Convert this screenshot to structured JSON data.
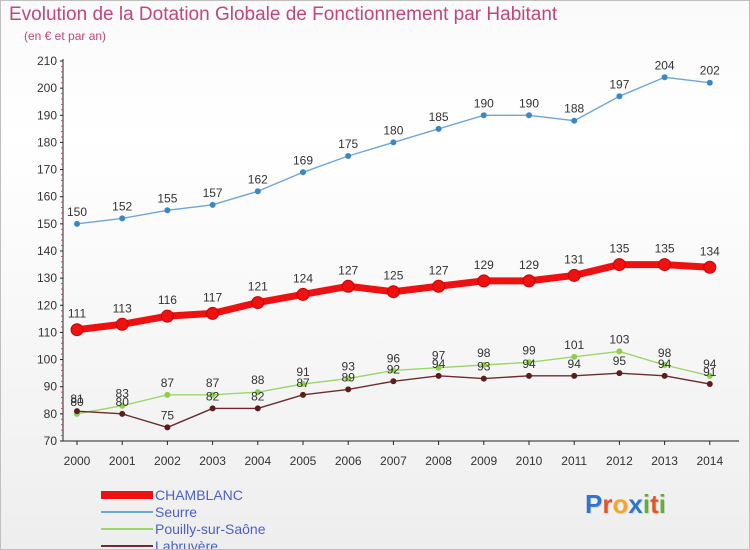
{
  "title": "Evolution de la Dotation Globale de Fonctionnement par Habitant",
  "subtitle": "(en € et par an)",
  "brand": {
    "text": "Proxiti",
    "letters": [
      "P",
      "r",
      "o",
      "x",
      "i",
      "t",
      "i"
    ],
    "letter_colors": [
      "#2f75c9",
      "#e0572a",
      "#f2a531",
      "#2f75c9",
      "#5ab334",
      "#e0572a",
      "#5ab334"
    ]
  },
  "chart_data": {
    "type": "line",
    "x": [
      "2000",
      "2001",
      "2002",
      "2003",
      "2004",
      "2005",
      "2006",
      "2007",
      "2008",
      "2009",
      "2010",
      "2011",
      "2012",
      "2013",
      "2014"
    ],
    "ylim": [
      70,
      210
    ],
    "yticks": [
      "70",
      "80",
      "90",
      "100",
      "110",
      "120",
      "130",
      "140",
      "150",
      "160",
      "170",
      "180",
      "190",
      "200",
      "210"
    ],
    "grid": false,
    "legend_position": "bottom-left",
    "series": [
      {
        "name": "CHAMBLANC",
        "color": "#ee1111",
        "emphasis": true,
        "values": [
          111,
          113,
          116,
          117,
          121,
          124,
          127,
          125,
          127,
          129,
          129,
          131,
          135,
          135,
          134
        ],
        "labels": [
          "111",
          "113",
          "116",
          "117",
          "121",
          "124",
          "127",
          "125",
          "127",
          "129",
          "129",
          "131",
          "135",
          "135",
          "134"
        ]
      },
      {
        "name": "Seurre",
        "color": "#6fa6d8",
        "emphasis": false,
        "values": [
          150,
          152,
          155,
          157,
          162,
          169,
          175,
          180,
          185,
          190,
          190,
          188,
          197,
          204,
          202
        ],
        "labels": [
          "150",
          "152",
          "155",
          "157",
          "162",
          "169",
          "175",
          "180",
          "185",
          "190",
          "190",
          "188",
          "197",
          "204",
          "202"
        ]
      },
      {
        "name": "Pouilly-sur-Saône",
        "color": "#9cd66a",
        "emphasis": false,
        "values": [
          80,
          83,
          87,
          87,
          88,
          91,
          93,
          96,
          97,
          98,
          99,
          101,
          103,
          98,
          94
        ],
        "labels": [
          "80",
          "83",
          "87",
          "87",
          "88",
          "91",
          "93",
          "96",
          "97",
          "98",
          "99",
          "101",
          "103",
          "98",
          "94"
        ]
      },
      {
        "name": "Labruyère",
        "color": "#6b2d2d",
        "emphasis": false,
        "values": [
          81,
          80,
          75,
          82,
          82,
          87,
          89,
          92,
          94,
          93,
          94,
          94,
          95,
          94,
          91
        ],
        "labels": [
          "81",
          "80",
          "75",
          "82",
          "82",
          "87",
          "89",
          "92",
          "94",
          "93",
          "94",
          "94",
          "95",
          "94",
          "91"
        ]
      }
    ]
  }
}
